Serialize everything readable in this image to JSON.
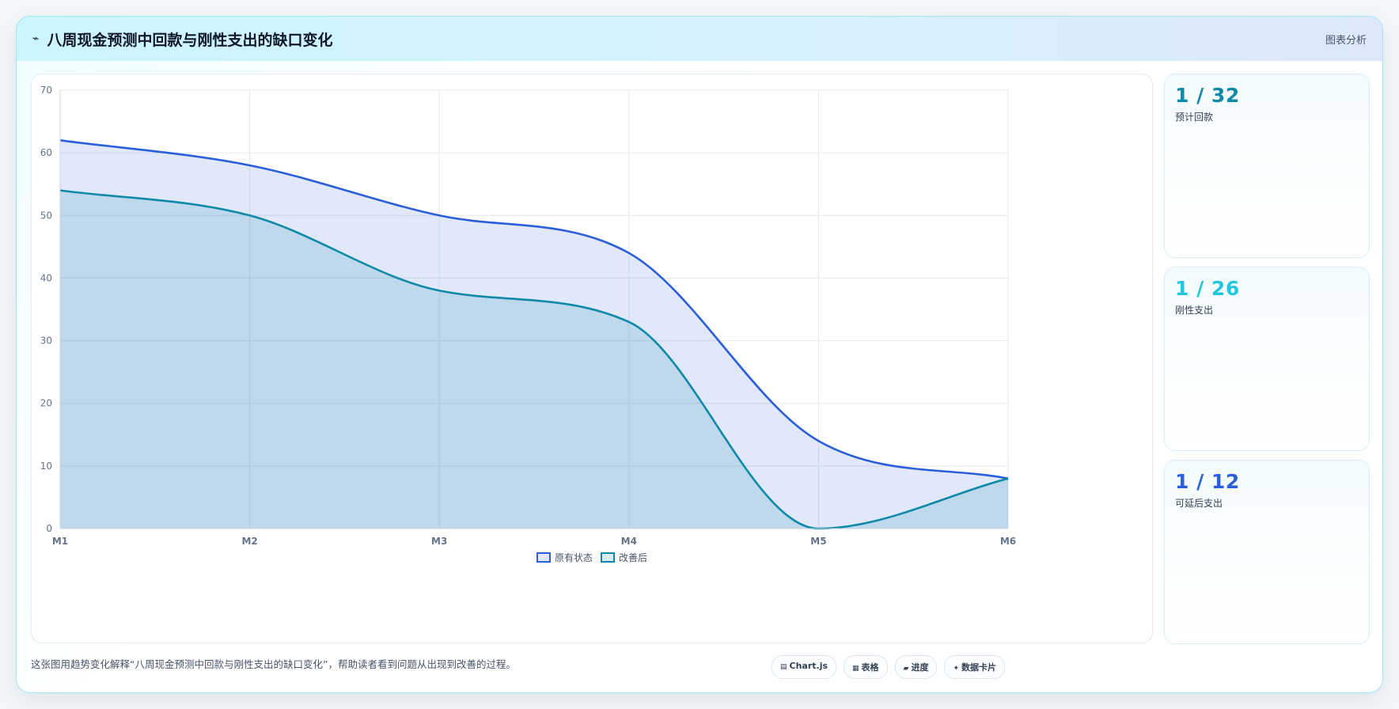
{
  "header": {
    "logo": "⌁",
    "title": "八周现金预测中回款与刚性支出的缺口变化",
    "right_label": "图表分析"
  },
  "chart_data": {
    "type": "area",
    "x": [
      "M1",
      "M2",
      "M3",
      "M4",
      "M5",
      "M6"
    ],
    "ylim": [
      0,
      70
    ],
    "yticks": [
      0,
      10,
      20,
      30,
      40,
      50,
      60,
      70
    ],
    "grid": true,
    "legend": "bottom-center",
    "series": [
      {
        "name": "原有状态",
        "values": [
          62,
          58,
          50,
          44,
          14,
          8
        ],
        "color": "#2b5fd9",
        "fill": "rgba(43,95,217,0.14)"
      },
      {
        "name": "改善后",
        "values": [
          54,
          50,
          38,
          33,
          0,
          8
        ],
        "color": "#0e8aa8",
        "fill": "rgba(14,138,168,0.16)"
      }
    ]
  },
  "side_cards": [
    {
      "value": "1 / 32",
      "label": "预计回款",
      "color": "#0e8aa8"
    },
    {
      "value": "1 / 26",
      "label": "刚性支出",
      "color": "#22c7de"
    },
    {
      "value": "1 / 12",
      "label": "可延后支出",
      "color": "#2b5fd9"
    }
  ],
  "footer": {
    "description": "这张图用趋势变化解释“八周现金预测中回款与刚性支出的缺口变化”，帮助读者看到问题从出现到改善的过程。",
    "badges": [
      {
        "icon": "▤",
        "label": "Chart.js"
      },
      {
        "icon": "▦",
        "label": "表格"
      },
      {
        "icon": "▰",
        "label": "进度"
      },
      {
        "icon": "✦",
        "label": "数据卡片"
      }
    ]
  }
}
